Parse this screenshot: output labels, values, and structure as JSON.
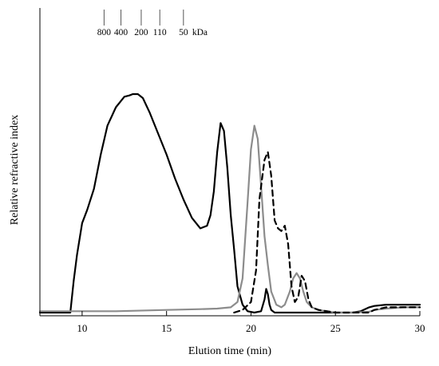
{
  "chart_data": {
    "type": "line",
    "xlabel": "Elution time (min)",
    "ylabel": "Relative refractive index",
    "xlim": [
      7.5,
      30
    ],
    "ylim": [
      0,
      1.0
    ],
    "x_ticks": [
      "10",
      "15",
      "20",
      "25",
      "30"
    ],
    "y_ticks_shown": false,
    "grid": false,
    "legend": "none",
    "mw_markers": {
      "unit": "kDa",
      "labels": [
        "800",
        "400",
        "200",
        "110",
        "50"
      ],
      "x": [
        11.3,
        12.3,
        13.5,
        14.6,
        16.0
      ]
    },
    "series": [
      {
        "style": "solid",
        "color": "#000000",
        "x": [
          7.5,
          9.3,
          9.5,
          9.7,
          10.0,
          10.3,
          10.7,
          11.1,
          11.5,
          12.0,
          12.5,
          12.8,
          13.0,
          13.3,
          13.6,
          14.0,
          14.5,
          15.0,
          15.5,
          16.0,
          16.5,
          17.0,
          17.4,
          17.6,
          17.8,
          18.0,
          18.2,
          18.4,
          18.6,
          18.8,
          19.0,
          19.2,
          19.5,
          19.8,
          20.2,
          20.6,
          20.8,
          20.9,
          21.0,
          21.1,
          21.2,
          21.4,
          22.0,
          23.0,
          24.0,
          25.0,
          26.0,
          26.5,
          27.0,
          27.3,
          28.0,
          29.0,
          30.0
        ],
        "y": [
          0.0,
          0.0,
          0.12,
          0.22,
          0.34,
          0.39,
          0.47,
          0.6,
          0.71,
          0.78,
          0.82,
          0.825,
          0.83,
          0.83,
          0.815,
          0.76,
          0.68,
          0.6,
          0.51,
          0.43,
          0.36,
          0.32,
          0.33,
          0.37,
          0.46,
          0.61,
          0.72,
          0.69,
          0.55,
          0.37,
          0.24,
          0.1,
          0.03,
          0.005,
          0.0,
          0.005,
          0.05,
          0.09,
          0.07,
          0.03,
          0.01,
          0.0,
          0.0,
          0.0,
          0.0,
          0.0,
          0.0,
          0.005,
          0.02,
          0.025,
          0.03,
          0.03,
          0.03
        ]
      },
      {
        "style": "solid",
        "color": "#8c8c8c",
        "x": [
          7.5,
          10.0,
          12.0,
          15.0,
          17.0,
          18.0,
          18.8,
          19.2,
          19.5,
          19.8,
          20.0,
          20.2,
          20.4,
          20.6,
          20.8,
          21.0,
          21.2,
          21.5,
          21.8,
          22.0,
          22.3,
          22.5,
          22.7,
          22.9,
          23.1,
          23.3,
          23.6,
          24.0,
          24.5,
          25.0,
          26.0,
          27.0,
          27.3,
          28.0,
          29.0,
          30.0
        ],
        "y": [
          0.005,
          0.005,
          0.005,
          0.01,
          0.013,
          0.015,
          0.02,
          0.04,
          0.13,
          0.42,
          0.62,
          0.71,
          0.66,
          0.48,
          0.29,
          0.18,
          0.08,
          0.03,
          0.02,
          0.03,
          0.08,
          0.13,
          0.15,
          0.13,
          0.08,
          0.04,
          0.02,
          0.01,
          0.005,
          0.0,
          0.0,
          0.003,
          0.01,
          0.015,
          0.02,
          0.02
        ]
      },
      {
        "style": "dashed",
        "color": "#000000",
        "x": [
          19.0,
          19.5,
          20.0,
          20.3,
          20.5,
          20.8,
          21.0,
          21.2,
          21.4,
          21.6,
          21.8,
          22.0,
          22.2,
          22.4,
          22.6,
          22.8,
          23.0,
          23.2,
          23.4,
          23.6,
          24.0,
          24.5,
          25.0,
          25.5,
          26.0,
          27.0,
          27.3,
          28.0,
          29.0,
          30.0
        ],
        "y": [
          0.0,
          0.01,
          0.04,
          0.16,
          0.43,
          0.58,
          0.61,
          0.52,
          0.35,
          0.32,
          0.31,
          0.33,
          0.26,
          0.1,
          0.04,
          0.06,
          0.14,
          0.12,
          0.05,
          0.02,
          0.01,
          0.005,
          0.0,
          0.0,
          0.0,
          0.0,
          0.01,
          0.02,
          0.02,
          0.02
        ]
      }
    ]
  }
}
